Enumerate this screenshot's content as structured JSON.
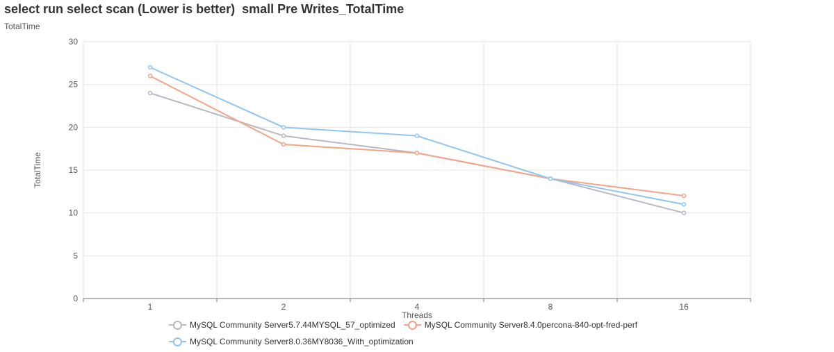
{
  "title": "select run select scan (Lower is better)  small Pre Writes_TotalTime",
  "subtitle": "TotalTime",
  "chart_data": {
    "type": "line",
    "title": "select run select scan (Lower is better)  small Pre Writes_TotalTime",
    "xlabel": "Threads",
    "ylabel": "TotalTime",
    "categories": [
      "1",
      "2",
      "4",
      "8",
      "16"
    ],
    "ylim": [
      0,
      30
    ],
    "yticks": [
      0,
      5,
      10,
      15,
      20,
      25,
      30
    ],
    "grid": true,
    "legend_position": "bottom",
    "series": [
      {
        "name": "MySQL Community Server5.7.44MYSQL_57_optimized",
        "color": "#b8b8c4",
        "values": [
          24,
          19,
          17,
          14,
          10
        ]
      },
      {
        "name": "MySQL Community Server8.4.0percona-840-opt-fred-perf",
        "color": "#f4a386",
        "values": [
          26,
          18,
          17,
          14,
          12
        ]
      },
      {
        "name": "MySQL Community Server8.0.36MY8036_With_optimization",
        "color": "#8ec5f2",
        "values": [
          27,
          20,
          19,
          14,
          11
        ]
      }
    ]
  }
}
